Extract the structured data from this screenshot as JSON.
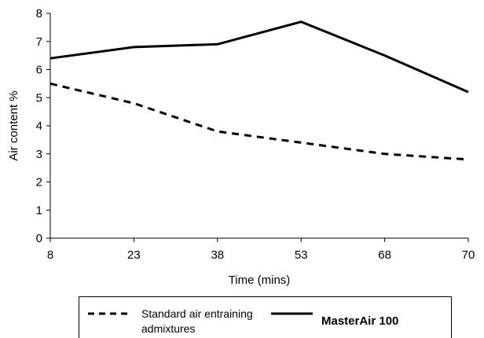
{
  "chart_data": {
    "type": "line",
    "title": "",
    "xlabel": "Time (mins)",
    "ylabel": "Air content %",
    "categories": [
      "8",
      "23",
      "38",
      "53",
      "68",
      "70"
    ],
    "ylim": [
      0,
      8
    ],
    "yticks": [
      "0",
      "1",
      "2",
      "3",
      "4",
      "5",
      "6",
      "7",
      "8"
    ],
    "grid": false,
    "legend_position": "bottom",
    "series": [
      {
        "name": "Standard air entraining admixtures",
        "name_lines": [
          "Standard air entraining",
          "admixtures"
        ],
        "values": [
          5.5,
          4.8,
          3.8,
          3.4,
          3.0,
          2.8
        ],
        "style": "dashed",
        "color": "#000000"
      },
      {
        "name": "MasterAir 100",
        "values": [
          6.4,
          6.8,
          6.9,
          7.7,
          6.5,
          5.2
        ],
        "style": "solid",
        "color": "#000000"
      }
    ]
  }
}
